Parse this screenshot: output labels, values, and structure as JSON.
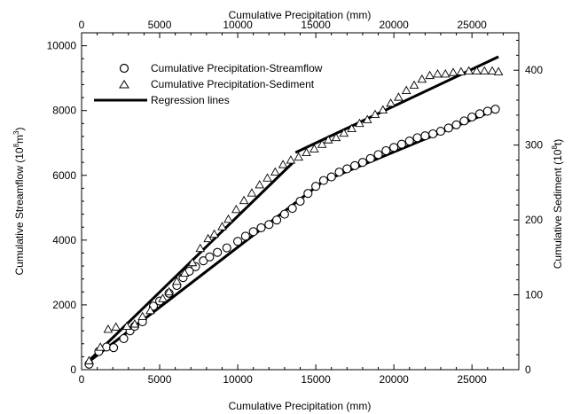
{
  "chart_data": {
    "type": "scatter",
    "x_label_bottom": "Cumulative Precipitation (mm)",
    "x_label_top": "Cumulative Precipitation (mm)",
    "y_label_left": "Cumulative Streamflow (10",
    "y_label_left_sup": "8",
    "y_label_left_unit": "m",
    "y_label_left_unit_sup": "3",
    "y_label_left_close": ")",
    "y_label_right": "Cumulative Sediment (10",
    "y_label_right_sup": "8",
    "y_label_right_close": "t)",
    "xlim": [
      0,
      28000
    ],
    "ylim_left": [
      0,
      10400
    ],
    "ylim_right": [
      0,
      450
    ],
    "x_ticks": [
      "0",
      "5000",
      "10000",
      "15000",
      "20000",
      "25000"
    ],
    "x_tick_values": [
      0,
      5000,
      10000,
      15000,
      20000,
      25000
    ],
    "y_left_ticks": [
      "0",
      "2000",
      "4000",
      "6000",
      "8000",
      "10000"
    ],
    "y_left_tick_values": [
      0,
      2000,
      4000,
      6000,
      8000,
      10000
    ],
    "y_right_ticks": [
      "0",
      "100",
      "200",
      "300",
      "400"
    ],
    "y_right_tick_values": [
      0,
      100,
      200,
      300,
      400
    ],
    "legend": {
      "position": "top-left",
      "entries": [
        {
          "marker": "circle",
          "label": "Cumulative Precipitation-Streamflow"
        },
        {
          "marker": "triangle",
          "label": "Cumulative Precipitation-Sediment"
        },
        {
          "marker": "line",
          "label": "Regression lines"
        }
      ]
    },
    "series": [
      {
        "name": "Cumulative Precipitation-Streamflow",
        "axis": "left",
        "marker": "circle",
        "points": [
          [
            480,
            170
          ],
          [
            1100,
            560
          ],
          [
            1600,
            700
          ],
          [
            2050,
            680
          ],
          [
            2700,
            960
          ],
          [
            3100,
            1200
          ],
          [
            3400,
            1340
          ],
          [
            3900,
            1480
          ],
          [
            4600,
            1960
          ],
          [
            5000,
            2120
          ],
          [
            5600,
            2360
          ],
          [
            6100,
            2600
          ],
          [
            6500,
            2840
          ],
          [
            6900,
            3040
          ],
          [
            7300,
            3180
          ],
          [
            7800,
            3360
          ],
          [
            8200,
            3480
          ],
          [
            8700,
            3620
          ],
          [
            9300,
            3760
          ],
          [
            10000,
            3960
          ],
          [
            10500,
            4120
          ],
          [
            11000,
            4260
          ],
          [
            11500,
            4380
          ],
          [
            12000,
            4480
          ],
          [
            12500,
            4620
          ],
          [
            13000,
            4800
          ],
          [
            13500,
            4980
          ],
          [
            14000,
            5200
          ],
          [
            14500,
            5440
          ],
          [
            15000,
            5660
          ],
          [
            15500,
            5840
          ],
          [
            16000,
            5950
          ],
          [
            16500,
            6100
          ],
          [
            17000,
            6200
          ],
          [
            17500,
            6300
          ],
          [
            18000,
            6400
          ],
          [
            18500,
            6520
          ],
          [
            19000,
            6640
          ],
          [
            19500,
            6760
          ],
          [
            20000,
            6860
          ],
          [
            20500,
            6960
          ],
          [
            21000,
            7060
          ],
          [
            21500,
            7160
          ],
          [
            22000,
            7220
          ],
          [
            22500,
            7280
          ],
          [
            23000,
            7360
          ],
          [
            23500,
            7460
          ],
          [
            24000,
            7560
          ],
          [
            24500,
            7680
          ],
          [
            25000,
            7800
          ],
          [
            25500,
            7900
          ],
          [
            26000,
            7980
          ],
          [
            26500,
            8040
          ]
        ]
      },
      {
        "name": "Cumulative Precipitation-Sediment",
        "axis": "right",
        "marker": "triangle",
        "points": [
          [
            480,
            12
          ],
          [
            1200,
            30
          ],
          [
            1700,
            54
          ],
          [
            2200,
            57
          ],
          [
            2900,
            58
          ],
          [
            3400,
            61
          ],
          [
            3900,
            71
          ],
          [
            4400,
            79
          ],
          [
            5200,
            95
          ],
          [
            5600,
            104
          ],
          [
            6100,
            118
          ],
          [
            6600,
            129
          ],
          [
            7100,
            143
          ],
          [
            7600,
            162
          ],
          [
            8100,
            175
          ],
          [
            8500,
            181
          ],
          [
            9000,
            191
          ],
          [
            9400,
            201
          ],
          [
            9900,
            214
          ],
          [
            10400,
            226
          ],
          [
            10900,
            236
          ],
          [
            11400,
            247
          ],
          [
            11900,
            256
          ],
          [
            12400,
            264
          ],
          [
            12900,
            274
          ],
          [
            13400,
            280
          ],
          [
            13900,
            284
          ],
          [
            14400,
            290
          ],
          [
            14900,
            295
          ],
          [
            15400,
            301
          ],
          [
            15800,
            307
          ],
          [
            16300,
            310
          ],
          [
            16800,
            316
          ],
          [
            17300,
            322
          ],
          [
            17800,
            329
          ],
          [
            18300,
            334
          ],
          [
            18800,
            341
          ],
          [
            19300,
            347
          ],
          [
            19800,
            356
          ],
          [
            20300,
            364
          ],
          [
            20800,
            373
          ],
          [
            21300,
            380
          ],
          [
            21800,
            388
          ],
          [
            22300,
            393
          ],
          [
            22800,
            395
          ],
          [
            23300,
            395
          ],
          [
            23800,
            397
          ],
          [
            24300,
            398
          ],
          [
            24800,
            399
          ],
          [
            25300,
            399
          ],
          [
            25800,
            399
          ],
          [
            26300,
            399
          ],
          [
            26700,
            398
          ]
        ]
      }
    ],
    "regression_lines": [
      {
        "axis": "left",
        "points": [
          [
            480,
            250
          ],
          [
            15500,
            5820
          ]
        ]
      },
      {
        "axis": "left",
        "points": [
          [
            15500,
            5820
          ],
          [
            26700,
            8060
          ]
        ]
      },
      {
        "axis": "right",
        "points": [
          [
            480,
            12
          ],
          [
            13600,
            278
          ]
        ]
      },
      {
        "axis": "right",
        "points": [
          [
            13700,
            290
          ],
          [
            26700,
            418
          ]
        ]
      }
    ]
  }
}
